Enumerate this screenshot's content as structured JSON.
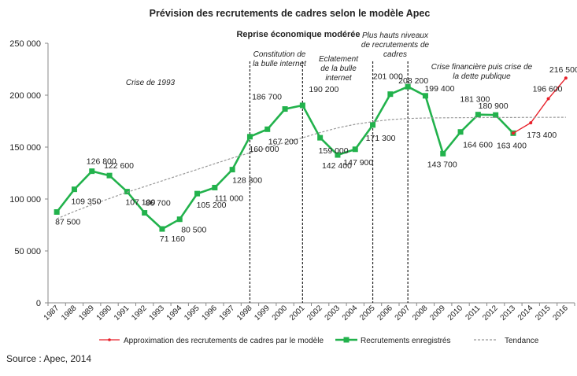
{
  "chart_data": {
    "type": "line",
    "title": "Prévision des recrutements  de cadres selon le modèle Apec",
    "ylim": [
      0,
      250000
    ],
    "yticks": [
      "0",
      "50 000",
      "100 000",
      "150 000",
      "200 000",
      "250 000"
    ],
    "ytick_values": [
      0,
      50000,
      100000,
      150000,
      200000,
      250000
    ],
    "categories": [
      "1987",
      "1988",
      "1989",
      "1990",
      "1991",
      "1992",
      "1993",
      "1994",
      "1995",
      "1996",
      "1997",
      "1998",
      "1999",
      "2000",
      "2001",
      "2002",
      "2003",
      "2004",
      "2005",
      "2006",
      "2007",
      "2008",
      "2009",
      "2010",
      "2011",
      "2012",
      "2013",
      "2014",
      "2015",
      "2016"
    ],
    "series": [
      {
        "name": "Recrutements enregistrés",
        "color": "#22b24c",
        "marker": "square",
        "x": [
          "1987",
          "1988",
          "1989",
          "1990",
          "1991",
          "1992",
          "1993",
          "1994",
          "1995",
          "1996",
          "1997",
          "1998",
          "1999",
          "2000",
          "2001",
          "2002",
          "2003",
          "2004",
          "2005",
          "2006",
          "2007",
          "2008",
          "2009",
          "2010",
          "2011",
          "2012",
          "2013"
        ],
        "values": [
          87500,
          109350,
          126800,
          122600,
          107100,
          86700,
          71160,
          80500,
          105200,
          111000,
          128300,
          160000,
          167200,
          186700,
          190200,
          159000,
          142400,
          147900,
          171300,
          201000,
          208200,
          199400,
          143700,
          164600,
          181300,
          180900,
          163400
        ]
      },
      {
        "name": "Approximation des recrutements de cadres par le modèle",
        "color": "#e8202a",
        "marker": "dot",
        "x": [
          "2013",
          "2014",
          "2015",
          "2016"
        ],
        "values": [
          163400,
          173400,
          196600,
          216500
        ]
      },
      {
        "name": "Tendance",
        "color": "#999999",
        "style": "dashed",
        "x": [
          "1987",
          "1988",
          "1989",
          "1990",
          "1991",
          "1992",
          "1993",
          "1994",
          "1995",
          "1996",
          "1997",
          "1998",
          "1999",
          "2000",
          "2001",
          "2002",
          "2003",
          "2004",
          "2005",
          "2006",
          "2007",
          "2008",
          "2009",
          "2010",
          "2011",
          "2012",
          "2013",
          "2014",
          "2015",
          "2016"
        ],
        "values": [
          81000,
          88000,
          94500,
          100500,
          106500,
          112000,
          117500,
          123000,
          128500,
          134000,
          139500,
          144500,
          149500,
          154500,
          159000,
          164000,
          168500,
          172000,
          174500,
          176500,
          177500,
          178000,
          178200,
          178300,
          178400,
          178500,
          178500,
          178600,
          178600,
          178700
        ]
      }
    ],
    "data_labels": [
      {
        "text": "87 500",
        "x": "1987",
        "value": 87500
      },
      {
        "text": "109 350",
        "x": "1988",
        "value": 109350
      },
      {
        "text": "126 800",
        "x": "1989",
        "value": 126800
      },
      {
        "text": "122 600",
        "x": "1990",
        "value": 122600
      },
      {
        "text": "107 100",
        "x": "1991",
        "value": 107100
      },
      {
        "text": "86 700",
        "x": "1992",
        "value": 86700
      },
      {
        "text": "71 160",
        "x": "1993",
        "value": 71160
      },
      {
        "text": "80 500",
        "x": "1994",
        "value": 80500
      },
      {
        "text": "105 200",
        "x": "1995",
        "value": 105200
      },
      {
        "text": "111 000",
        "x": "1996",
        "value": 111000
      },
      {
        "text": "128 300",
        "x": "1997",
        "value": 128300
      },
      {
        "text": "160 000",
        "x": "1998",
        "value": 160000
      },
      {
        "text": "167 200",
        "x": "1999",
        "value": 167200
      },
      {
        "text": "186 700",
        "x": "2000",
        "value": 186700
      },
      {
        "text": "190 200",
        "x": "2001",
        "value": 190200
      },
      {
        "text": "159 000",
        "x": "2002",
        "value": 159000
      },
      {
        "text": "142 400",
        "x": "2003",
        "value": 142400
      },
      {
        "text": "147 900",
        "x": "2004",
        "value": 147900
      },
      {
        "text": "171 300",
        "x": "2005",
        "value": 171300
      },
      {
        "text": "201 000",
        "x": "2006",
        "value": 201000
      },
      {
        "text": "208 200",
        "x": "2007",
        "value": 208200
      },
      {
        "text": "199 400",
        "x": "2008",
        "value": 199400
      },
      {
        "text": "143 700",
        "x": "2009",
        "value": 143700
      },
      {
        "text": "164 600",
        "x": "2010",
        "value": 164600
      },
      {
        "text": "181 300",
        "x": "2011",
        "value": 181300
      },
      {
        "text": "180 900",
        "x": "2012",
        "value": 180900
      },
      {
        "text": "163 400",
        "x": "2013",
        "value": 163400
      },
      {
        "text": "173 400",
        "x": "2014",
        "value": 173400
      },
      {
        "text": "196 600",
        "x": "2015",
        "value": 196600
      },
      {
        "text": "216 500",
        "x": "2016",
        "value": 216500
      }
    ],
    "annotations": [
      {
        "text": "Reprise économique modérée"
      },
      {
        "text": "Crise de 1993"
      },
      {
        "lines": [
          "Constitution de",
          "la bulle internet"
        ]
      },
      {
        "lines": [
          "Eclatement",
          "de la bulle",
          "internet"
        ]
      },
      {
        "lines": [
          "Plus hauts niveaux",
          "de recrutements de",
          "cadres"
        ]
      },
      {
        "lines": [
          "Crise financière puis  crise de",
          "la dette publique"
        ]
      }
    ],
    "vlines": [
      "1998",
      "2001",
      "2005",
      "2007"
    ],
    "legend": {
      "position": "bottom",
      "entries": [
        "Approximation des recrutements de cadres par le modèle",
        "Recrutements enregistrés",
        "Tendance"
      ]
    },
    "grid": false
  },
  "source": "Source : Apec, 2014"
}
